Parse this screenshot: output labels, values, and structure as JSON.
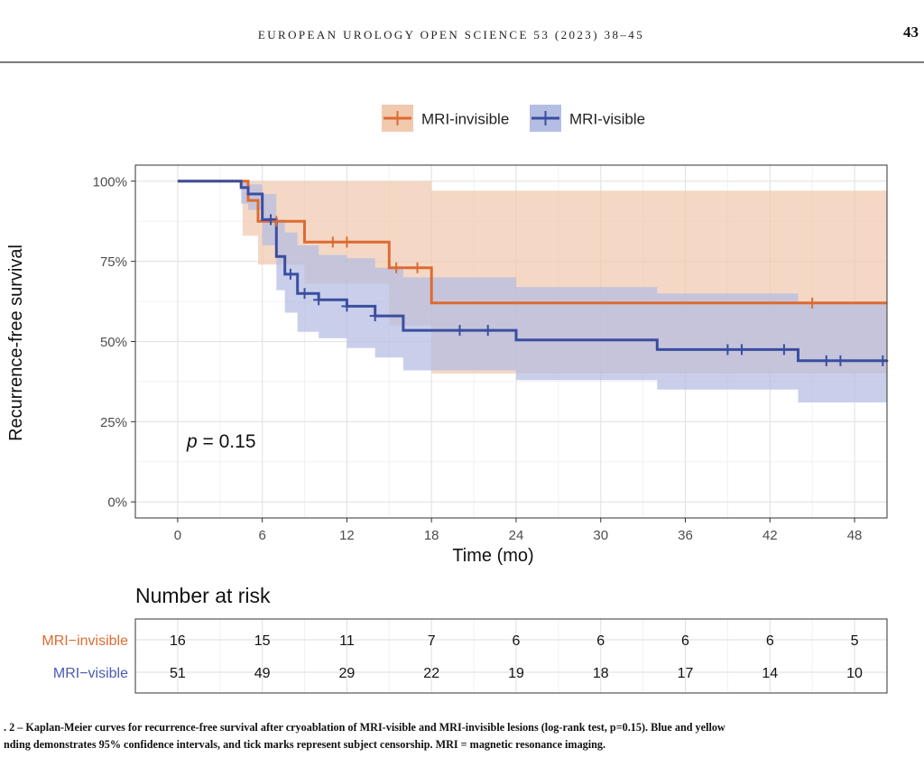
{
  "header": {
    "journal": "EUROPEAN UROLOGY OPEN SCIENCE 53 (2023) 38–45",
    "page_number": "43"
  },
  "caption": {
    "line1": ". 2 – Kaplan-Meier curves for recurrence-free survival after cryoablation of MRI-visible and MRI-invisible lesions (log-rank test, p=0.15). Blue and yellow",
    "line2": "nding demonstrates 95% confidence intervals, and tick marks represent subject censorship. MRI = magnetic resonance imaging."
  },
  "colors": {
    "invisible_line": "#dd6b33",
    "invisible_band": "#f0c9ae",
    "visible_line": "#3a4ea0",
    "visible_band": "#b4bde2",
    "invisible_label": "#dd6b33",
    "visible_label": "#4a5bb0"
  },
  "chart_data": {
    "type": "line",
    "title": "",
    "xlabel": "Time (mo)",
    "ylabel": "Recurrence-free survival",
    "xlim": [
      -3,
      50.3
    ],
    "ylim": [
      -0.05,
      1.05
    ],
    "x_ticks": [
      0,
      6,
      12,
      18,
      24,
      30,
      36,
      42,
      48
    ],
    "y_ticks": [
      0,
      0.25,
      0.5,
      0.75,
      1.0
    ],
    "y_tick_labels": [
      "0%",
      "25%",
      "50%",
      "75%",
      "100%"
    ],
    "legend_position": "top",
    "annotation": {
      "prefix": "p",
      "rest": " = 0.15"
    },
    "series": [
      {
        "name": "MRI-invisible",
        "color_key": "invisible",
        "steps": [
          [
            0,
            1.0
          ],
          [
            5,
            0.94
          ],
          [
            5.7,
            0.875
          ],
          [
            9,
            0.81
          ],
          [
            15,
            0.73
          ],
          [
            18,
            0.62
          ],
          [
            50.3,
            0.62
          ]
        ],
        "ci": [
          [
            0,
            1.0,
            1.0
          ],
          [
            4.6,
            1.0,
            1.0
          ],
          [
            4.6,
            1.0,
            0.83
          ],
          [
            5.7,
            1.0,
            0.74
          ],
          [
            9,
            1.0,
            0.68
          ],
          [
            15,
            1.0,
            0.55
          ],
          [
            18,
            0.97,
            0.4
          ],
          [
            50.3,
            0.97,
            0.4
          ]
        ],
        "censor": [
          [
            7,
            0.875
          ],
          [
            11,
            0.81
          ],
          [
            12,
            0.81
          ],
          [
            15.5,
            0.73
          ],
          [
            17,
            0.73
          ],
          [
            45,
            0.62
          ]
        ]
      },
      {
        "name": "MRI-visible",
        "color_key": "visible",
        "steps": [
          [
            0,
            1.0
          ],
          [
            4.5,
            0.98
          ],
          [
            5,
            0.96
          ],
          [
            6,
            0.88
          ],
          [
            7,
            0.765
          ],
          [
            7.6,
            0.71
          ],
          [
            8.5,
            0.65
          ],
          [
            10,
            0.63
          ],
          [
            12,
            0.61
          ],
          [
            14,
            0.58
          ],
          [
            16,
            0.535
          ],
          [
            24,
            0.505
          ],
          [
            34,
            0.475
          ],
          [
            44,
            0.44
          ],
          [
            50.3,
            0.44
          ]
        ],
        "ci": [
          [
            0,
            1.0,
            1.0
          ],
          [
            4.5,
            1.0,
            0.93
          ],
          [
            5,
            0.99,
            0.91
          ],
          [
            6,
            0.96,
            0.8
          ],
          [
            7,
            0.88,
            0.66
          ],
          [
            7.6,
            0.84,
            0.59
          ],
          [
            8.5,
            0.8,
            0.53
          ],
          [
            10,
            0.77,
            0.51
          ],
          [
            12,
            0.76,
            0.48
          ],
          [
            14,
            0.73,
            0.45
          ],
          [
            16,
            0.7,
            0.41
          ],
          [
            24,
            0.67,
            0.38
          ],
          [
            34,
            0.65,
            0.35
          ],
          [
            44,
            0.62,
            0.31
          ],
          [
            50.3,
            0.62,
            0.31
          ]
        ],
        "censor": [
          [
            6.6,
            0.88
          ],
          [
            8,
            0.71
          ],
          [
            9,
            0.65
          ],
          [
            10,
            0.63
          ],
          [
            12,
            0.61
          ],
          [
            14,
            0.58
          ],
          [
            20,
            0.535
          ],
          [
            22,
            0.535
          ],
          [
            39,
            0.475
          ],
          [
            40,
            0.475
          ],
          [
            43,
            0.475
          ],
          [
            46,
            0.44
          ],
          [
            47,
            0.44
          ],
          [
            50,
            0.44
          ]
        ]
      }
    ],
    "risk_table": {
      "title": "Number at risk",
      "times": [
        0,
        6,
        12,
        18,
        24,
        30,
        36,
        42,
        48
      ],
      "rows": [
        {
          "label": "MRI−invisible",
          "color_key": "invisible",
          "values": [
            16,
            15,
            11,
            7,
            6,
            6,
            6,
            6,
            5
          ]
        },
        {
          "label": "MRI−visible",
          "color_key": "visible",
          "values": [
            51,
            49,
            29,
            22,
            19,
            18,
            17,
            14,
            10
          ]
        }
      ]
    }
  }
}
